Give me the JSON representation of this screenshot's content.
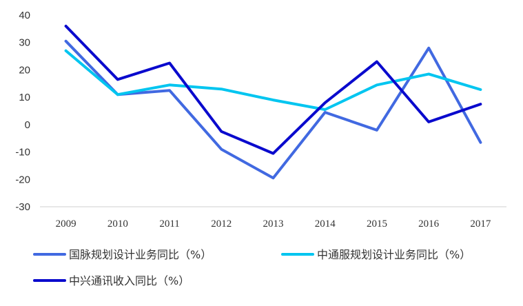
{
  "chart_data": {
    "type": "line",
    "title": "",
    "xlabel": "",
    "ylabel": "",
    "categories": [
      "2009",
      "2010",
      "2011",
      "2012",
      "2013",
      "2014",
      "2015",
      "2016",
      "2017"
    ],
    "ylim": [
      -30,
      40
    ],
    "yticks": [
      40,
      30,
      20,
      10,
      0,
      -10,
      -20,
      -30
    ],
    "grid": false,
    "legend_position": "bottom",
    "series": [
      {
        "name": "国脉规划设计业务同比（%）",
        "color": "#4169E1",
        "values": [
          30.5,
          11.0,
          12.5,
          -9.0,
          -19.5,
          4.5,
          -2.0,
          28.0,
          -6.5
        ]
      },
      {
        "name": "中通服规划设计业务同比（%）",
        "color": "#00C5F0",
        "values": [
          27.0,
          11.0,
          14.5,
          13.0,
          9.0,
          5.5,
          14.5,
          18.5,
          12.8
        ]
      },
      {
        "name": "中兴通讯收入同比（%）",
        "color": "#0A0ACD",
        "values": [
          36.0,
          16.5,
          22.5,
          -2.5,
          -10.5,
          8.0,
          23.0,
          1.0,
          7.5
        ]
      }
    ]
  }
}
